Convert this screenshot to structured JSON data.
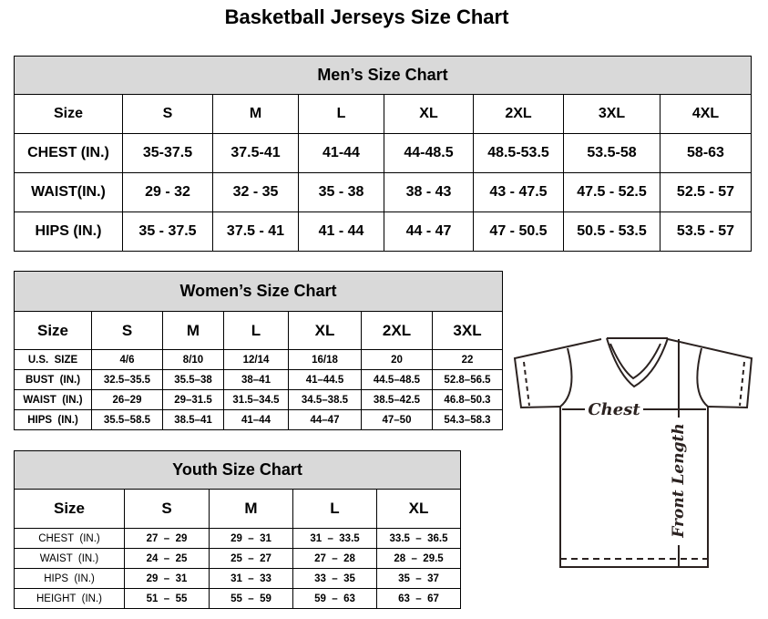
{
  "title": "Basketball Jerseys Size Chart",
  "men": {
    "caption": "Men’s Size Chart",
    "header": [
      "Size",
      "S",
      "M",
      "L",
      "XL",
      "2XL",
      "3XL",
      "4XL"
    ],
    "rows": [
      [
        "CHEST (IN.)",
        "35-37.5",
        "37.5-41",
        "41-44",
        "44-48.5",
        "48.5-53.5",
        "53.5-58",
        "58-63"
      ],
      [
        "WAIST(IN.)",
        "29 - 32",
        "32 - 35",
        "35 - 38",
        "38 - 43",
        "43 - 47.5",
        "47.5 - 52.5",
        "52.5 - 57"
      ],
      [
        "HIPS (IN.)",
        "35 - 37.5",
        "37.5 - 41",
        "41 - 44",
        "44 - 47",
        "47 - 50.5",
        "50.5 - 53.5",
        "53.5 - 57"
      ]
    ]
  },
  "women": {
    "caption": "Women’s Size Chart",
    "header": [
      "Size",
      "S",
      "M",
      "L",
      "XL",
      "2XL",
      "3XL"
    ],
    "rows": [
      [
        "U.S.  SIZE",
        "4/6",
        "8/10",
        "12/14",
        "16/18",
        "20",
        "22"
      ],
      [
        "BUST  (IN.)",
        "32.5–35.5",
        "35.5–38",
        "38–41",
        "41–44.5",
        "44.5–48.5",
        "52.8–56.5"
      ],
      [
        "WAIST  (IN.)",
        "26–29",
        "29–31.5",
        "31.5–34.5",
        "34.5–38.5",
        "38.5–42.5",
        "46.8–50.3"
      ],
      [
        "HIPS  (IN.)",
        "35.5–58.5",
        "38.5–41",
        "41–44",
        "44–47",
        "47–50",
        "54.3–58.3"
      ]
    ]
  },
  "youth": {
    "caption": "Youth Size Chart",
    "header": [
      "Size",
      "S",
      "M",
      "L",
      "XL"
    ],
    "rows": [
      [
        "CHEST  (IN.)",
        "27  –  29",
        "29  –  31",
        "31  –  33.5",
        "33.5  –  36.5"
      ],
      [
        "WAIST  (IN.)",
        "24  –  25",
        "25  –  27",
        "27  –  28",
        "28  –  29.5"
      ],
      [
        "HIPS  (IN.)",
        "29  –  31",
        "31  –  33",
        "33  –  35",
        "35  –  37"
      ],
      [
        "HEIGHT  (IN.)",
        "51  –  55",
        "55  –  59",
        "59  –  63",
        "63  –  67"
      ]
    ]
  },
  "diagram": {
    "chest_label": "Chest",
    "length_label": "Front Length",
    "icon": "t-shirt-icon"
  }
}
